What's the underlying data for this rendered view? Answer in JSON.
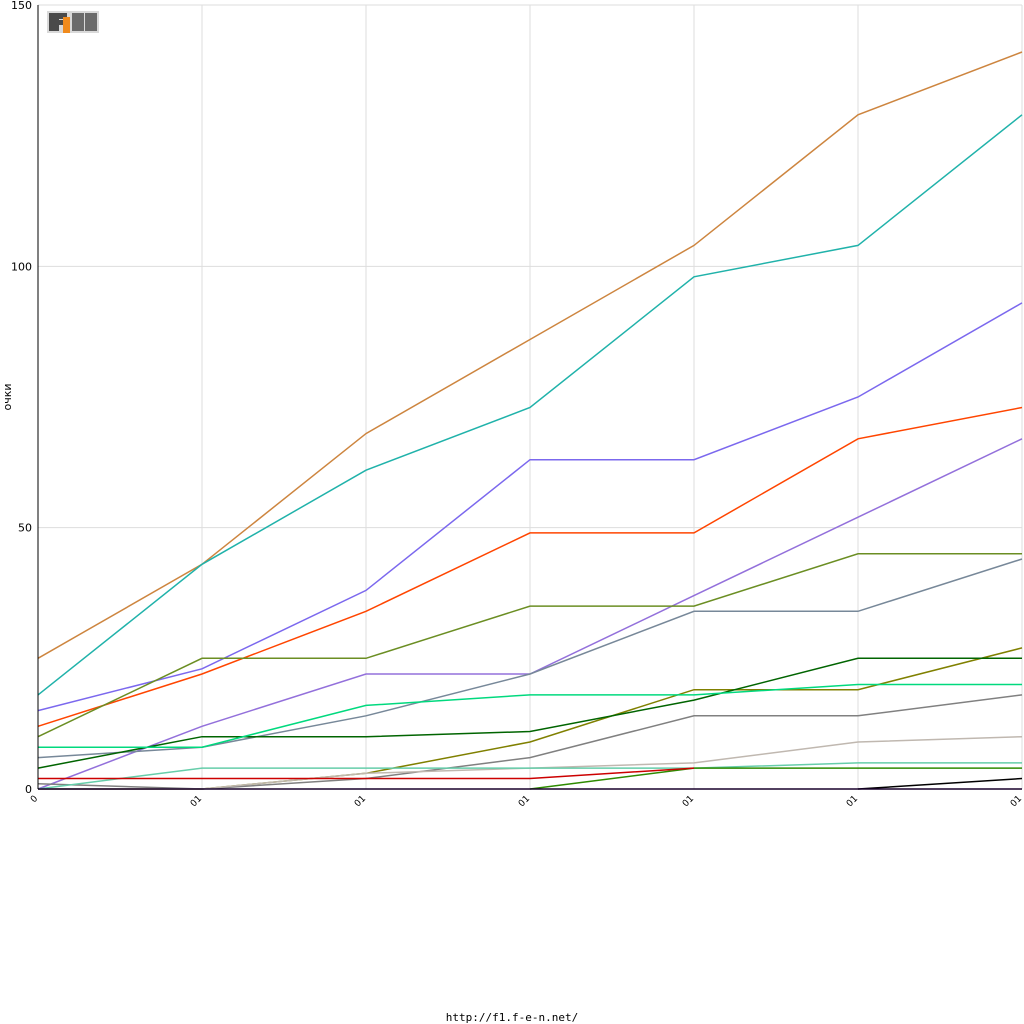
{
  "footer": {
    "url": "http://f1.f-e-n.net/"
  },
  "logo": {
    "text": "F1FEN"
  },
  "chart_data": {
    "type": "line",
    "ylabel": "очки",
    "ylim": [
      0,
      150
    ],
    "yticks": [
      0,
      50,
      100,
      150
    ],
    "categories": [
      "0",
      "01",
      "01",
      "01",
      "01",
      "01",
      "01"
    ],
    "grid": true,
    "series": [
      {
        "color": "#cd853f",
        "values": [
          25,
          43,
          68,
          86,
          104,
          129,
          141
        ]
      },
      {
        "color": "#20b2aa",
        "values": [
          18,
          43,
          61,
          73,
          98,
          104,
          129
        ]
      },
      {
        "color": "#7b68ee",
        "values": [
          15,
          23,
          38,
          63,
          63,
          75,
          93
        ]
      },
      {
        "color": "#ff4500",
        "values": [
          12,
          22,
          34,
          49,
          49,
          67,
          73
        ]
      },
      {
        "color": "#9370db",
        "values": [
          0,
          12,
          22,
          22,
          37,
          52,
          67
        ]
      },
      {
        "color": "#6b8e23",
        "values": [
          10,
          25,
          25,
          35,
          35,
          45,
          45
        ]
      },
      {
        "color": "#778899",
        "values": [
          6,
          8,
          14,
          22,
          34,
          34,
          44
        ]
      },
      {
        "color": "#808000",
        "values": [
          0,
          0,
          3,
          9,
          19,
          19,
          27
        ]
      },
      {
        "color": "#006400",
        "values": [
          4,
          10,
          10,
          11,
          17,
          25,
          25
        ]
      },
      {
        "color": "#00d97e",
        "values": [
          8,
          8,
          16,
          18,
          18,
          20,
          20
        ]
      },
      {
        "color": "#808080",
        "values": [
          1,
          0,
          2,
          6,
          14,
          14,
          18
        ]
      },
      {
        "color": "#c0b8b0",
        "values": [
          0,
          0,
          3,
          4,
          5,
          9,
          10
        ]
      },
      {
        "color": "#66cdaa",
        "values": [
          0,
          4,
          4,
          4,
          4,
          5,
          5
        ]
      },
      {
        "color": "#2e8b00",
        "values": [
          null,
          null,
          null,
          0,
          4,
          4,
          4
        ]
      },
      {
        "color": "#cc0000",
        "values": [
          2,
          2,
          2,
          2,
          4,
          null,
          null
        ]
      },
      {
        "color": "#000000",
        "values": [
          null,
          null,
          null,
          null,
          null,
          0,
          2
        ]
      },
      {
        "color": "#4b0082",
        "values": [
          0,
          0,
          0,
          0,
          0,
          0,
          0
        ]
      }
    ]
  }
}
